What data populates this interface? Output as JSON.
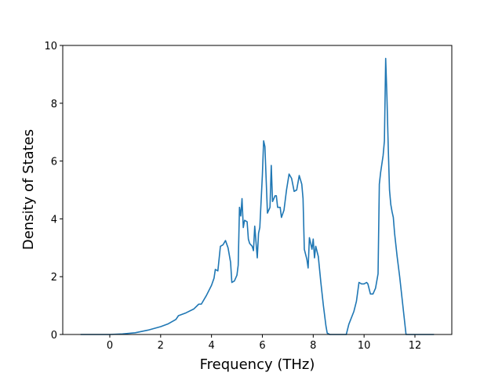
{
  "chart_data": {
    "type": "line",
    "xlabel": "Frequency (THz)",
    "ylabel": "Density of States",
    "xlim": [
      -1.85,
      13.45
    ],
    "ylim": [
      0,
      10
    ],
    "xticks": [
      0,
      2,
      4,
      6,
      8,
      10,
      12
    ],
    "yticks": [
      0,
      2,
      4,
      6,
      8,
      10
    ],
    "grid": false,
    "series": [
      {
        "color": "#1f77b4",
        "x": [
          -1.15,
          0,
          0.5,
          1,
          1.5,
          2,
          2.3,
          2.6,
          2.7,
          3.0,
          3.3,
          3.5,
          3.6,
          3.8,
          4.0,
          4.1,
          4.15,
          4.25,
          4.35,
          4.45,
          4.55,
          4.65,
          4.75,
          4.8,
          4.9,
          5.0,
          5.05,
          5.1,
          5.15,
          5.2,
          5.25,
          5.3,
          5.4,
          5.45,
          5.5,
          5.6,
          5.65,
          5.7,
          5.8,
          5.85,
          5.9,
          6.0,
          6.05,
          6.1,
          6.2,
          6.3,
          6.35,
          6.4,
          6.5,
          6.55,
          6.6,
          6.7,
          6.75,
          6.85,
          6.95,
          7.05,
          7.15,
          7.25,
          7.35,
          7.45,
          7.55,
          7.6,
          7.65,
          7.75,
          7.8,
          7.85,
          7.95,
          8.0,
          8.05,
          8.1,
          8.2,
          8.3,
          8.4,
          8.5,
          8.55,
          8.65,
          9.3,
          9.4,
          9.6,
          9.7,
          9.8,
          9.9,
          10.0,
          10.1,
          10.15,
          10.25,
          10.35,
          10.45,
          10.55,
          10.6,
          10.65,
          10.75,
          10.8,
          10.85,
          10.9,
          10.95,
          11.0,
          11.05,
          11.1,
          11.15,
          11.2,
          11.3,
          11.4,
          11.5,
          11.6,
          11.65,
          12.75
        ],
        "values": [
          0,
          0,
          0.02,
          0.06,
          0.15,
          0.27,
          0.37,
          0.52,
          0.65,
          0.75,
          0.88,
          1.05,
          1.05,
          1.35,
          1.7,
          1.95,
          2.25,
          2.2,
          3.05,
          3.1,
          3.25,
          3.0,
          2.5,
          1.8,
          1.85,
          2.05,
          2.4,
          4.4,
          4.1,
          4.7,
          3.7,
          3.95,
          3.9,
          3.3,
          3.15,
          3.05,
          2.9,
          3.75,
          2.65,
          3.5,
          3.7,
          5.5,
          6.7,
          6.5,
          4.2,
          4.4,
          5.85,
          4.6,
          4.8,
          4.8,
          4.4,
          4.4,
          4.05,
          4.3,
          5.0,
          5.55,
          5.4,
          4.95,
          5.0,
          5.5,
          5.2,
          4.7,
          2.95,
          2.6,
          2.3,
          3.35,
          2.95,
          3.3,
          2.65,
          3.05,
          2.7,
          1.8,
          1.0,
          0.3,
          0.05,
          0,
          0,
          0.35,
          0.8,
          1.15,
          1.8,
          1.75,
          1.75,
          1.8,
          1.75,
          1.4,
          1.4,
          1.6,
          2.1,
          5.2,
          5.6,
          6.2,
          6.7,
          9.55,
          8.2,
          6.5,
          5.0,
          4.5,
          4.25,
          4.05,
          3.5,
          2.7,
          2.0,
          1.2,
          0.4,
          0,
          0
        ]
      }
    ]
  }
}
